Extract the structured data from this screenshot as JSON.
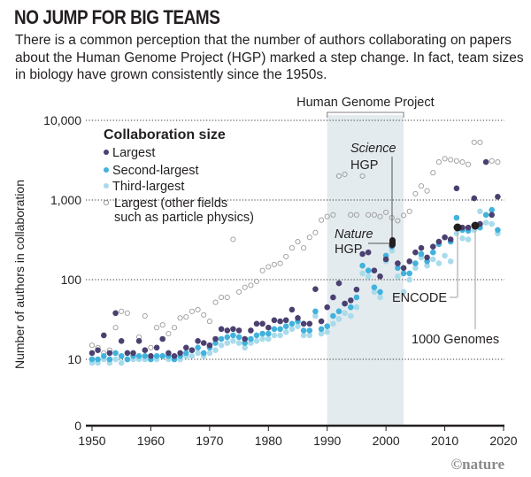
{
  "header": {
    "title": "NO JUMP FOR BIG TEAMS",
    "subtitle": "There is a common perception that the number of authors collaborating on papers about the Human Genome Project (HGP) marked a step change. In fact, team sizes in biology have grown consistently since the 1950s."
  },
  "credit": "©nature",
  "colors": {
    "largest": "#4b4070",
    "second": "#41b2dc",
    "third": "#a9dbeb",
    "other_fields_stroke": "#9a9a9a",
    "highlight": "#231f20",
    "hgp_band": "#e3ebee",
    "leader": "#bdbdbd"
  },
  "chart_data": {
    "type": "scatter",
    "title": "NO JUMP FOR BIG TEAMS",
    "xlabel": "",
    "ylabel": "Number of authors in collaboration",
    "xlim": [
      1950,
      2020
    ],
    "y_scale": "log (with 0 baseline)",
    "ylim": [
      0,
      10000
    ],
    "x_ticks": [
      "1950",
      "1960",
      "1970",
      "1980",
      "1990",
      "2000",
      "2010",
      "2020"
    ],
    "y_ticks": [
      "0",
      "10",
      "100",
      "1,000",
      "10,000"
    ],
    "gridlines": "dotted at 10, 100, 1,000, 10,000",
    "legend": {
      "title": "Collaboration size",
      "position": "top-left",
      "entries": [
        "Largest",
        "Second-largest",
        "Third-largest",
        "Largest (other fields such as particle physics)"
      ]
    },
    "shaded_region": {
      "label": "Human Genome Project",
      "x_range": [
        1990,
        2003
      ]
    },
    "annotations": [
      {
        "label_italic": "Science",
        "label": "HGP",
        "x": 2001,
        "y": 300
      },
      {
        "label_italic": "Nature",
        "label": "HGP",
        "x": 2001,
        "y": 270
      },
      {
        "label": "ENCODE",
        "x": 2012,
        "y": 450
      },
      {
        "label": "1000 Genomes",
        "x": 2015,
        "y": 480
      }
    ],
    "series": [
      {
        "name": "Largest",
        "x": [
          1950,
          1951,
          1952,
          1953,
          1954,
          1955,
          1956,
          1957,
          1958,
          1959,
          1960,
          1961,
          1962,
          1963,
          1964,
          1965,
          1966,
          1967,
          1968,
          1969,
          1970,
          1971,
          1972,
          1973,
          1974,
          1975,
          1976,
          1977,
          1978,
          1979,
          1980,
          1981,
          1982,
          1983,
          1984,
          1985,
          1986,
          1987,
          1988,
          1989,
          1990,
          1991,
          1992,
          1993,
          1994,
          1995,
          1996,
          1997,
          1998,
          1999,
          2000,
          2001,
          2002,
          2003,
          2004,
          2005,
          2006,
          2007,
          2008,
          2009,
          2010,
          2011,
          2012,
          2013,
          2014,
          2015,
          2016,
          2017,
          2018,
          2019
        ],
        "y": [
          12,
          13,
          20,
          12,
          38,
          17,
          12,
          12,
          17,
          13,
          11,
          14,
          18,
          12,
          11,
          12,
          14,
          13,
          17,
          16,
          15,
          18,
          24,
          23,
          24,
          23,
          18,
          23,
          28,
          28,
          25,
          31,
          30,
          31,
          42,
          33,
          28,
          28,
          76,
          30,
          45,
          60,
          90,
          50,
          55,
          75,
          210,
          220,
          130,
          110,
          180,
          270,
          160,
          140,
          170,
          220,
          250,
          190,
          260,
          300,
          340,
          320,
          1400,
          450,
          450,
          1050,
          500,
          3000,
          650,
          1100
        ],
        "color": "#4b4070"
      },
      {
        "name": "Second-largest",
        "x": [
          1950,
          1951,
          1952,
          1953,
          1954,
          1955,
          1956,
          1957,
          1958,
          1959,
          1960,
          1961,
          1962,
          1963,
          1964,
          1965,
          1966,
          1967,
          1968,
          1969,
          1970,
          1971,
          1972,
          1973,
          1974,
          1975,
          1976,
          1977,
          1978,
          1979,
          1980,
          1981,
          1982,
          1983,
          1984,
          1985,
          1986,
          1987,
          1988,
          1989,
          1990,
          1991,
          1992,
          1993,
          1994,
          1995,
          1996,
          1997,
          1998,
          1999,
          2000,
          2001,
          2002,
          2003,
          2004,
          2005,
          2006,
          2007,
          2008,
          2009,
          2010,
          2011,
          2012,
          2013,
          2014,
          2015,
          2016,
          2017,
          2018,
          2019
        ],
        "y": [
          10,
          10,
          11,
          10,
          12,
          11,
          10,
          11,
          11,
          11,
          10,
          11,
          11,
          11,
          10,
          11,
          12,
          13,
          14,
          12,
          14,
          16,
          18,
          19,
          20,
          19,
          16,
          18,
          20,
          21,
          21,
          24,
          24,
          26,
          28,
          30,
          23,
          23,
          40,
          24,
          26,
          35,
          40,
          50,
          45,
          60,
          150,
          130,
          80,
          70,
          200,
          260,
          140,
          120,
          120,
          160,
          210,
          170,
          220,
          280,
          340,
          300,
          600,
          420,
          410,
          480,
          450,
          650,
          750,
          420
        ],
        "color": "#41b2dc"
      },
      {
        "name": "Third-largest",
        "x": [
          1950,
          1951,
          1952,
          1953,
          1954,
          1955,
          1956,
          1957,
          1958,
          1959,
          1960,
          1961,
          1962,
          1963,
          1964,
          1965,
          1966,
          1967,
          1968,
          1969,
          1970,
          1971,
          1972,
          1973,
          1974,
          1975,
          1976,
          1977,
          1978,
          1979,
          1980,
          1981,
          1982,
          1983,
          1984,
          1985,
          1986,
          1987,
          1988,
          1989,
          1990,
          1991,
          1992,
          1993,
          1994,
          1995,
          1996,
          1997,
          1998,
          1999,
          2000,
          2001,
          2002,
          2003,
          2004,
          2005,
          2006,
          2007,
          2008,
          2009,
          2010,
          2011,
          2012,
          2013,
          2014,
          2015,
          2016,
          2017,
          2018,
          2019
        ],
        "y": [
          9,
          9,
          10,
          9,
          10,
          9,
          10,
          10,
          10,
          10,
          10,
          10,
          11,
          10,
          10,
          10,
          11,
          11,
          12,
          11,
          12,
          13,
          15,
          16,
          17,
          16,
          14,
          16,
          17,
          18,
          18,
          20,
          20,
          22,
          24,
          26,
          20,
          20,
          35,
          21,
          22,
          28,
          32,
          38,
          35,
          45,
          120,
          110,
          70,
          60,
          170,
          230,
          110,
          70,
          100,
          140,
          190,
          150,
          180,
          160,
          200,
          170,
          380,
          330,
          320,
          420,
          720,
          520,
          500,
          380
        ],
        "color": "#a9dbeb"
      },
      {
        "name": "Largest (other fields such as particle physics)",
        "x": [
          1950,
          1951,
          1952,
          1953,
          1954,
          1955,
          1956,
          1957,
          1958,
          1959,
          1960,
          1961,
          1962,
          1963,
          1964,
          1965,
          1966,
          1967,
          1968,
          1969,
          1970,
          1971,
          1972,
          1973,
          1974,
          1975,
          1976,
          1977,
          1978,
          1979,
          1980,
          1981,
          1982,
          1983,
          1984,
          1985,
          1986,
          1987,
          1988,
          1989,
          1990,
          1991,
          1992,
          1993,
          1994,
          1995,
          1996,
          1997,
          1998,
          1999,
          2000,
          2001,
          2002,
          2003,
          2004,
          2005,
          2006,
          2007,
          2008,
          2009,
          2010,
          2011,
          2012,
          2013,
          2014,
          2015,
          2016,
          2017,
          2018,
          2019
        ],
        "y": [
          15,
          14,
          12,
          13,
          25,
          40,
          38,
          12,
          19,
          35,
          14,
          25,
          27,
          21,
          25,
          33,
          34,
          40,
          42,
          36,
          30,
          52,
          60,
          60,
          320,
          70,
          80,
          85,
          95,
          130,
          145,
          155,
          160,
          195,
          250,
          300,
          250,
          340,
          390,
          560,
          620,
          650,
          2000,
          2100,
          650,
          650,
          2000,
          650,
          650,
          620,
          700,
          600,
          550,
          640,
          720,
          1200,
          1500,
          1300,
          2200,
          3000,
          3300,
          3200,
          3100,
          3000,
          2800,
          5300,
          5300,
          3000,
          3100,
          3000
        ],
        "color": "#9a9a9a"
      }
    ]
  },
  "chart_text": {
    "legend_title": "Collaboration size",
    "legend": [
      "Largest",
      "Second-largest",
      "Third-largest",
      "Largest (other fields",
      "such as particle physics)"
    ],
    "ylabel": "Number of authors in collaboration",
    "hgp_label": "Human Genome Project",
    "science_italic": "Science",
    "science_hgp": "HGP",
    "nature_italic": "Nature",
    "nature_hgp": "HGP",
    "encode": "ENCODE",
    "genomes": "1000 Genomes",
    "x_ticks": [
      "1950",
      "1960",
      "1970",
      "1980",
      "1990",
      "2000",
      "2010",
      "2020"
    ],
    "y_ticks": [
      "10,000",
      "1,000",
      "100",
      "10",
      "0"
    ]
  }
}
